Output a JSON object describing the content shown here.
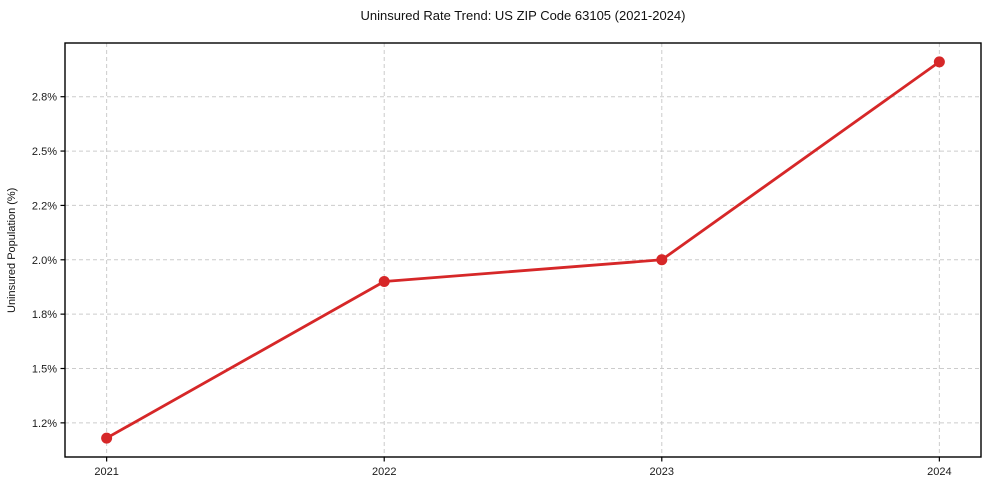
{
  "figure": {
    "background": "#ffffff"
  },
  "chart_data": {
    "type": "line",
    "title": "Uninsured Rate Trend: US ZIP Code 63105 (2021-2024)",
    "xlabel": "",
    "ylabel": "Uninsured Population (%)",
    "x": [
      2021,
      2022,
      2023,
      2024
    ],
    "series": [
      {
        "name": "Uninsured rate",
        "values": [
          1.18,
          1.9,
          2.0,
          2.91
        ]
      }
    ],
    "xticks": {
      "values": [
        2021,
        2022,
        2023,
        2024
      ],
      "labels": [
        "2021",
        "2022",
        "2023",
        "2024"
      ]
    },
    "yticks": {
      "values": [
        1.25,
        1.5,
        1.75,
        2.0,
        2.25,
        2.5,
        2.75
      ],
      "labels": [
        "1.2%",
        "1.5%",
        "1.8%",
        "2.0%",
        "2.2%",
        "2.5%",
        "2.8%"
      ]
    },
    "xlim": [
      2020.85,
      2024.15
    ],
    "ylim": [
      1.093,
      2.997
    ],
    "grid": true,
    "legend": "none",
    "line_color": "#d62728",
    "marker_color": "#d62728",
    "grid_color": "#cccccc",
    "spine_color": "#000000",
    "tick_label_color": "#1a1a1a",
    "marker": "circle"
  }
}
